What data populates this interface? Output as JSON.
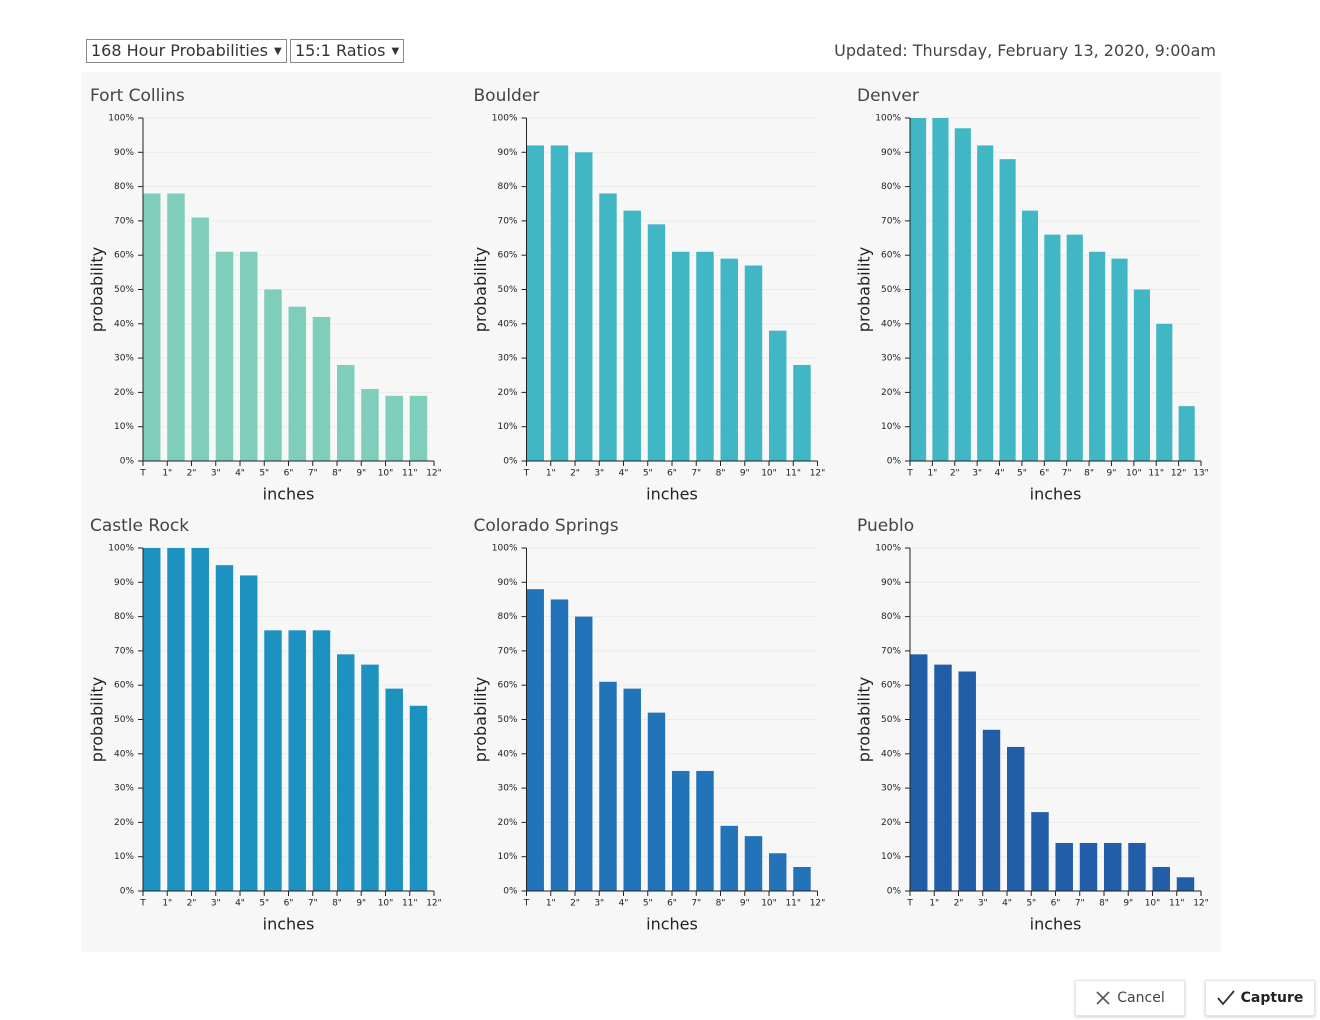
{
  "toolbar": {
    "period": "168 Hour Probabilities",
    "ratio": "15:1 Ratios",
    "updated": "Updated: Thursday, February 13, 2020, 9:00am"
  },
  "buttons": {
    "cancel": "Cancel",
    "capture": "Capture"
  },
  "chart_data": [
    {
      "type": "histogram",
      "title": "Fort Collins",
      "xlabel": "inches",
      "ylabel": "probability",
      "color": "#7fcdbb",
      "bins": [
        0,
        1,
        2,
        3,
        4,
        5,
        6,
        7,
        8,
        9,
        10,
        11,
        12
      ],
      "values": [
        78,
        78,
        71,
        61,
        61,
        50,
        45,
        42,
        28,
        21,
        19,
        19
      ],
      "xlim": [
        0,
        12
      ],
      "xticks": [
        {
          "value": 0,
          "label": "T"
        },
        {
          "value": 1,
          "label": "1\""
        },
        {
          "value": 2,
          "label": "2\""
        },
        {
          "value": 3,
          "label": "3\""
        },
        {
          "value": 4,
          "label": "4\""
        },
        {
          "value": 5,
          "label": "5\""
        },
        {
          "value": 6,
          "label": "6\""
        },
        {
          "value": 7,
          "label": "7\""
        },
        {
          "value": 8,
          "label": "8\""
        },
        {
          "value": 9,
          "label": "9\""
        },
        {
          "value": 10,
          "label": "10\""
        },
        {
          "value": 11,
          "label": "11\""
        },
        {
          "value": 12,
          "label": "12\""
        }
      ],
      "ylim": [
        0,
        100
      ],
      "yticks": [
        {
          "value": 0,
          "label": "0%"
        },
        {
          "value": 10,
          "label": "10%"
        },
        {
          "value": 20,
          "label": "20%"
        },
        {
          "value": 30,
          "label": "30%"
        },
        {
          "value": 40,
          "label": "40%"
        },
        {
          "value": 50,
          "label": "50%"
        },
        {
          "value": 60,
          "label": "60%"
        },
        {
          "value": 70,
          "label": "70%"
        },
        {
          "value": 80,
          "label": "80%"
        },
        {
          "value": 90,
          "label": "90%"
        },
        {
          "value": 100,
          "label": "100%"
        }
      ],
      "grid": true
    },
    {
      "type": "histogram",
      "title": "Boulder",
      "xlabel": "inches",
      "ylabel": "probability",
      "color": "#41b6c4",
      "bins": [
        0,
        1,
        2,
        3,
        4,
        5,
        6,
        7,
        8,
        9,
        10,
        11,
        12
      ],
      "values": [
        92,
        92,
        90,
        78,
        73,
        69,
        61,
        61,
        59,
        57,
        38,
        28
      ],
      "xlim": [
        0,
        12
      ],
      "xticks": [
        {
          "value": 0,
          "label": "T"
        },
        {
          "value": 1,
          "label": "1\""
        },
        {
          "value": 2,
          "label": "2\""
        },
        {
          "value": 3,
          "label": "3\""
        },
        {
          "value": 4,
          "label": "4\""
        },
        {
          "value": 5,
          "label": "5\""
        },
        {
          "value": 6,
          "label": "6\""
        },
        {
          "value": 7,
          "label": "7\""
        },
        {
          "value": 8,
          "label": "8\""
        },
        {
          "value": 9,
          "label": "9\""
        },
        {
          "value": 10,
          "label": "10\""
        },
        {
          "value": 11,
          "label": "11\""
        },
        {
          "value": 12,
          "label": "12\""
        }
      ],
      "ylim": [
        0,
        100
      ],
      "yticks": [
        {
          "value": 0,
          "label": "0%"
        },
        {
          "value": 10,
          "label": "10%"
        },
        {
          "value": 20,
          "label": "20%"
        },
        {
          "value": 30,
          "label": "30%"
        },
        {
          "value": 40,
          "label": "40%"
        },
        {
          "value": 50,
          "label": "50%"
        },
        {
          "value": 60,
          "label": "60%"
        },
        {
          "value": 70,
          "label": "70%"
        },
        {
          "value": 80,
          "label": "80%"
        },
        {
          "value": 90,
          "label": "90%"
        },
        {
          "value": 100,
          "label": "100%"
        }
      ],
      "grid": true
    },
    {
      "type": "histogram",
      "title": "Denver",
      "xlabel": "inches",
      "ylabel": "probability",
      "color": "#41b6c4",
      "bins": [
        0,
        1,
        2,
        3,
        4,
        5,
        6,
        7,
        8,
        9,
        10,
        11,
        12,
        13
      ],
      "values": [
        100,
        100,
        97,
        92,
        88,
        73,
        66,
        66,
        61,
        59,
        50,
        40,
        16
      ],
      "xlim": [
        0,
        13
      ],
      "xticks": [
        {
          "value": 0,
          "label": "T"
        },
        {
          "value": 1,
          "label": "1\""
        },
        {
          "value": 2,
          "label": "2\""
        },
        {
          "value": 3,
          "label": "3\""
        },
        {
          "value": 4,
          "label": "4\""
        },
        {
          "value": 5,
          "label": "5\""
        },
        {
          "value": 6,
          "label": "6\""
        },
        {
          "value": 7,
          "label": "7\""
        },
        {
          "value": 8,
          "label": "8\""
        },
        {
          "value": 9,
          "label": "9\""
        },
        {
          "value": 10,
          "label": "10\""
        },
        {
          "value": 11,
          "label": "11\""
        },
        {
          "value": 12,
          "label": "12\""
        },
        {
          "value": 13,
          "label": "13\""
        }
      ],
      "ylim": [
        0,
        100
      ],
      "yticks": [
        {
          "value": 0,
          "label": "0%"
        },
        {
          "value": 10,
          "label": "10%"
        },
        {
          "value": 20,
          "label": "20%"
        },
        {
          "value": 30,
          "label": "30%"
        },
        {
          "value": 40,
          "label": "40%"
        },
        {
          "value": 50,
          "label": "50%"
        },
        {
          "value": 60,
          "label": "60%"
        },
        {
          "value": 70,
          "label": "70%"
        },
        {
          "value": 80,
          "label": "80%"
        },
        {
          "value": 90,
          "label": "90%"
        },
        {
          "value": 100,
          "label": "100%"
        }
      ],
      "grid": true
    },
    {
      "type": "histogram",
      "title": "Castle Rock",
      "xlabel": "inches",
      "ylabel": "probability",
      "color": "#1d91c0",
      "bins": [
        0,
        1,
        2,
        3,
        4,
        5,
        6,
        7,
        8,
        9,
        10,
        11,
        12
      ],
      "values": [
        100,
        100,
        100,
        95,
        92,
        76,
        76,
        76,
        69,
        66,
        59,
        54
      ],
      "xlim": [
        0,
        12
      ],
      "xticks": [
        {
          "value": 0,
          "label": "T"
        },
        {
          "value": 1,
          "label": "1\""
        },
        {
          "value": 2,
          "label": "2\""
        },
        {
          "value": 3,
          "label": "3\""
        },
        {
          "value": 4,
          "label": "4\""
        },
        {
          "value": 5,
          "label": "5\""
        },
        {
          "value": 6,
          "label": "6\""
        },
        {
          "value": 7,
          "label": "7\""
        },
        {
          "value": 8,
          "label": "8\""
        },
        {
          "value": 9,
          "label": "9\""
        },
        {
          "value": 10,
          "label": "10\""
        },
        {
          "value": 11,
          "label": "11\""
        },
        {
          "value": 12,
          "label": "12\""
        }
      ],
      "ylim": [
        0,
        100
      ],
      "yticks": [
        {
          "value": 0,
          "label": "0%"
        },
        {
          "value": 10,
          "label": "10%"
        },
        {
          "value": 20,
          "label": "20%"
        },
        {
          "value": 30,
          "label": "30%"
        },
        {
          "value": 40,
          "label": "40%"
        },
        {
          "value": 50,
          "label": "50%"
        },
        {
          "value": 60,
          "label": "60%"
        },
        {
          "value": 70,
          "label": "70%"
        },
        {
          "value": 80,
          "label": "80%"
        },
        {
          "value": 90,
          "label": "90%"
        },
        {
          "value": 100,
          "label": "100%"
        }
      ],
      "grid": true
    },
    {
      "type": "histogram",
      "title": "Colorado Springs",
      "xlabel": "inches",
      "ylabel": "probability",
      "color": "#2373b8",
      "bins": [
        0,
        1,
        2,
        3,
        4,
        5,
        6,
        7,
        8,
        9,
        10,
        11,
        12
      ],
      "values": [
        88,
        85,
        80,
        61,
        59,
        52,
        35,
        35,
        19,
        16,
        11,
        7
      ],
      "xlim": [
        0,
        12
      ],
      "xticks": [
        {
          "value": 0,
          "label": "T"
        },
        {
          "value": 1,
          "label": "1\""
        },
        {
          "value": 2,
          "label": "2\""
        },
        {
          "value": 3,
          "label": "3\""
        },
        {
          "value": 4,
          "label": "4\""
        },
        {
          "value": 5,
          "label": "5\""
        },
        {
          "value": 6,
          "label": "6\""
        },
        {
          "value": 7,
          "label": "7\""
        },
        {
          "value": 8,
          "label": "8\""
        },
        {
          "value": 9,
          "label": "9\""
        },
        {
          "value": 10,
          "label": "10\""
        },
        {
          "value": 11,
          "label": "11\""
        },
        {
          "value": 12,
          "label": "12\""
        }
      ],
      "ylim": [
        0,
        100
      ],
      "yticks": [
        {
          "value": 0,
          "label": "0%"
        },
        {
          "value": 10,
          "label": "10%"
        },
        {
          "value": 20,
          "label": "20%"
        },
        {
          "value": 30,
          "label": "30%"
        },
        {
          "value": 40,
          "label": "40%"
        },
        {
          "value": 50,
          "label": "50%"
        },
        {
          "value": 60,
          "label": "60%"
        },
        {
          "value": 70,
          "label": "70%"
        },
        {
          "value": 80,
          "label": "80%"
        },
        {
          "value": 90,
          "label": "90%"
        },
        {
          "value": 100,
          "label": "100%"
        }
      ],
      "grid": true
    },
    {
      "type": "histogram",
      "title": "Pueblo",
      "xlabel": "inches",
      "ylabel": "probability",
      "color": "#225ea8",
      "bins": [
        0,
        1,
        2,
        3,
        4,
        5,
        6,
        7,
        8,
        9,
        10,
        11,
        12
      ],
      "values": [
        69,
        66,
        64,
        47,
        42,
        23,
        14,
        14,
        14,
        14,
        7,
        4
      ],
      "xlim": [
        0,
        12
      ],
      "xticks": [
        {
          "value": 0,
          "label": "T"
        },
        {
          "value": 1,
          "label": "1\""
        },
        {
          "value": 2,
          "label": "2\""
        },
        {
          "value": 3,
          "label": "3\""
        },
        {
          "value": 4,
          "label": "4\""
        },
        {
          "value": 5,
          "label": "5\""
        },
        {
          "value": 6,
          "label": "6\""
        },
        {
          "value": 7,
          "label": "7\""
        },
        {
          "value": 8,
          "label": "8\""
        },
        {
          "value": 9,
          "label": "9\""
        },
        {
          "value": 10,
          "label": "10\""
        },
        {
          "value": 11,
          "label": "11\""
        },
        {
          "value": 12,
          "label": "12\""
        }
      ],
      "ylim": [
        0,
        100
      ],
      "yticks": [
        {
          "value": 0,
          "label": "0%"
        },
        {
          "value": 10,
          "label": "10%"
        },
        {
          "value": 20,
          "label": "20%"
        },
        {
          "value": 30,
          "label": "30%"
        },
        {
          "value": 40,
          "label": "40%"
        },
        {
          "value": 50,
          "label": "50%"
        },
        {
          "value": 60,
          "label": "60%"
        },
        {
          "value": 70,
          "label": "70%"
        },
        {
          "value": 80,
          "label": "80%"
        },
        {
          "value": 90,
          "label": "90%"
        },
        {
          "value": 100,
          "label": "100%"
        }
      ],
      "grid": true
    }
  ]
}
